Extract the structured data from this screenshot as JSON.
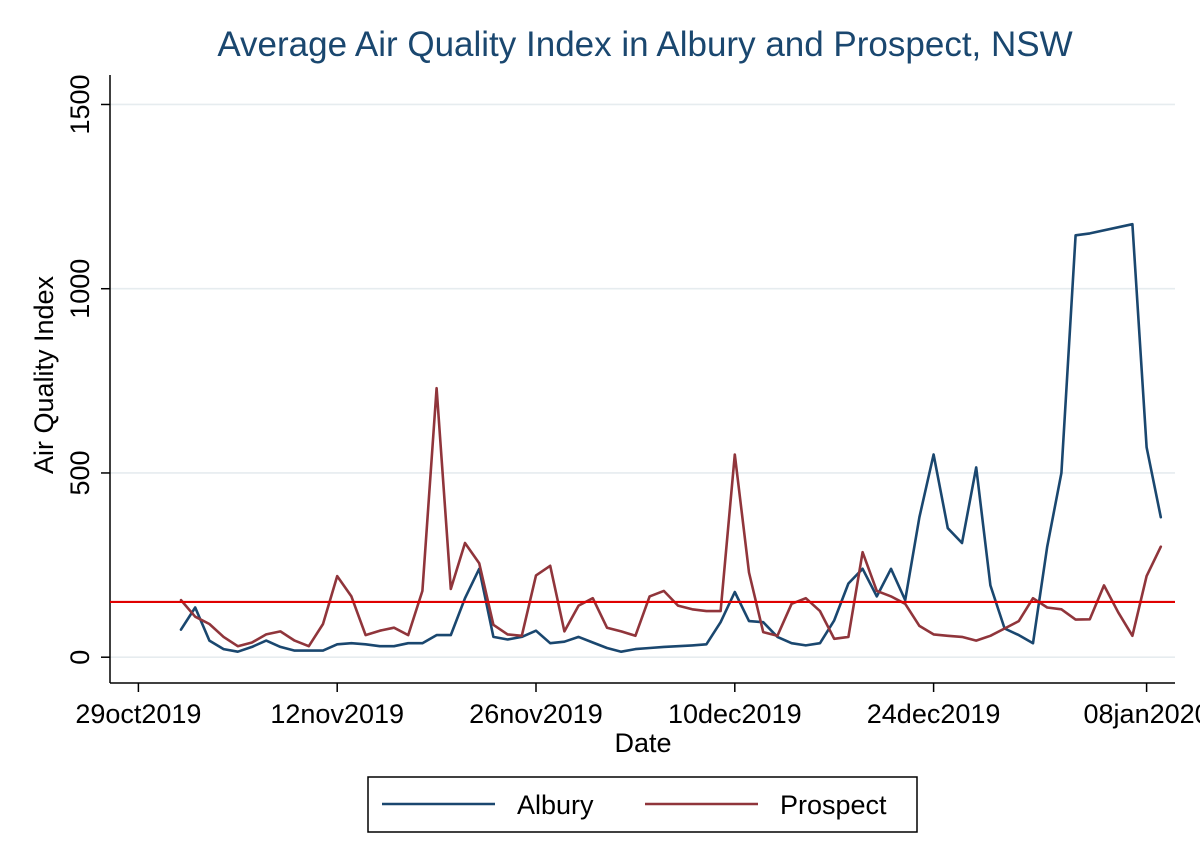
{
  "chart_data": {
    "type": "line",
    "title": "Average Air Quality Index in Albury and Prospect, NSW",
    "xlabel": "Date",
    "ylabel": "Air Quality Index",
    "xlim_day_offsets": [
      -2,
      73
    ],
    "x_ticks": [
      {
        "label": "29oct2019",
        "day": 0
      },
      {
        "label": "12nov2019",
        "day": 14
      },
      {
        "label": "26nov2019",
        "day": 28
      },
      {
        "label": "10dec2019",
        "day": 42
      },
      {
        "label": "24dec2019",
        "day": 56
      },
      {
        "label": "08jan2020",
        "day": 71
      }
    ],
    "ylim": [
      -70,
      1580
    ],
    "y_ticks": [
      0,
      500,
      1000,
      1500
    ],
    "grid": true,
    "reference_line": {
      "value": 150,
      "color": "#e00000"
    },
    "series": [
      {
        "name": "Albury",
        "color": "#1a476f",
        "x": [
          3,
          4,
          5,
          6,
          7,
          8,
          9,
          10,
          11,
          12,
          13,
          14,
          15,
          16,
          17,
          18,
          19,
          20,
          21,
          22,
          23,
          24,
          25,
          26,
          27,
          28,
          29,
          30,
          31,
          32,
          33,
          34,
          35,
          36,
          37,
          38,
          39,
          40,
          41,
          42,
          43,
          44,
          45,
          46,
          47,
          48,
          49,
          50,
          51,
          52,
          53,
          54,
          55,
          56,
          57,
          58,
          59,
          60,
          61,
          62,
          63,
          64,
          65,
          66,
          67,
          70,
          71,
          72
        ],
        "values": [
          75,
          135,
          45,
          22,
          15,
          28,
          45,
          28,
          18,
          18,
          18,
          35,
          38,
          35,
          30,
          30,
          38,
          38,
          60,
          60,
          160,
          240,
          55,
          48,
          55,
          72,
          38,
          42,
          55,
          40,
          25,
          15,
          22,
          25,
          28,
          30,
          32,
          35,
          95,
          177,
          98,
          95,
          55,
          38,
          32,
          38,
          100,
          200,
          240,
          165,
          240,
          155,
          380,
          550,
          350,
          310,
          515,
          195,
          78,
          60,
          38,
          300,
          500,
          1145,
          1150,
          1175,
          570,
          380
        ]
      },
      {
        "name": "Prospect",
        "color": "#90353b",
        "x": [
          3,
          4,
          5,
          6,
          7,
          8,
          9,
          10,
          11,
          12,
          13,
          14,
          15,
          16,
          17,
          18,
          19,
          20,
          21,
          22,
          23,
          24,
          25,
          26,
          27,
          28,
          29,
          30,
          31,
          32,
          33,
          34,
          35,
          36,
          37,
          38,
          39,
          40,
          41,
          42,
          43,
          44,
          45,
          46,
          47,
          48,
          49,
          50,
          51,
          52,
          53,
          54,
          55,
          56,
          57,
          58,
          59,
          60,
          61,
          62,
          63,
          64,
          65,
          66,
          67,
          68,
          69,
          70,
          71,
          72
        ],
        "values": [
          155,
          110,
          90,
          55,
          30,
          40,
          62,
          70,
          45,
          30,
          90,
          220,
          165,
          60,
          72,
          80,
          60,
          180,
          730,
          185,
          310,
          255,
          88,
          62,
          58,
          222,
          248,
          70,
          140,
          160,
          80,
          70,
          58,
          165,
          180,
          140,
          130,
          125,
          125,
          550,
          230,
          68,
          58,
          145,
          160,
          125,
          50,
          55,
          285,
          180,
          165,
          145,
          85,
          62,
          58,
          55,
          45,
          58,
          78,
          98,
          160,
          135,
          130,
          102,
          103,
          195,
          122,
          58,
          220,
          300
        ]
      }
    ],
    "legend": {
      "position": "bottom",
      "entries": [
        "Albury",
        "Prospect"
      ]
    }
  }
}
